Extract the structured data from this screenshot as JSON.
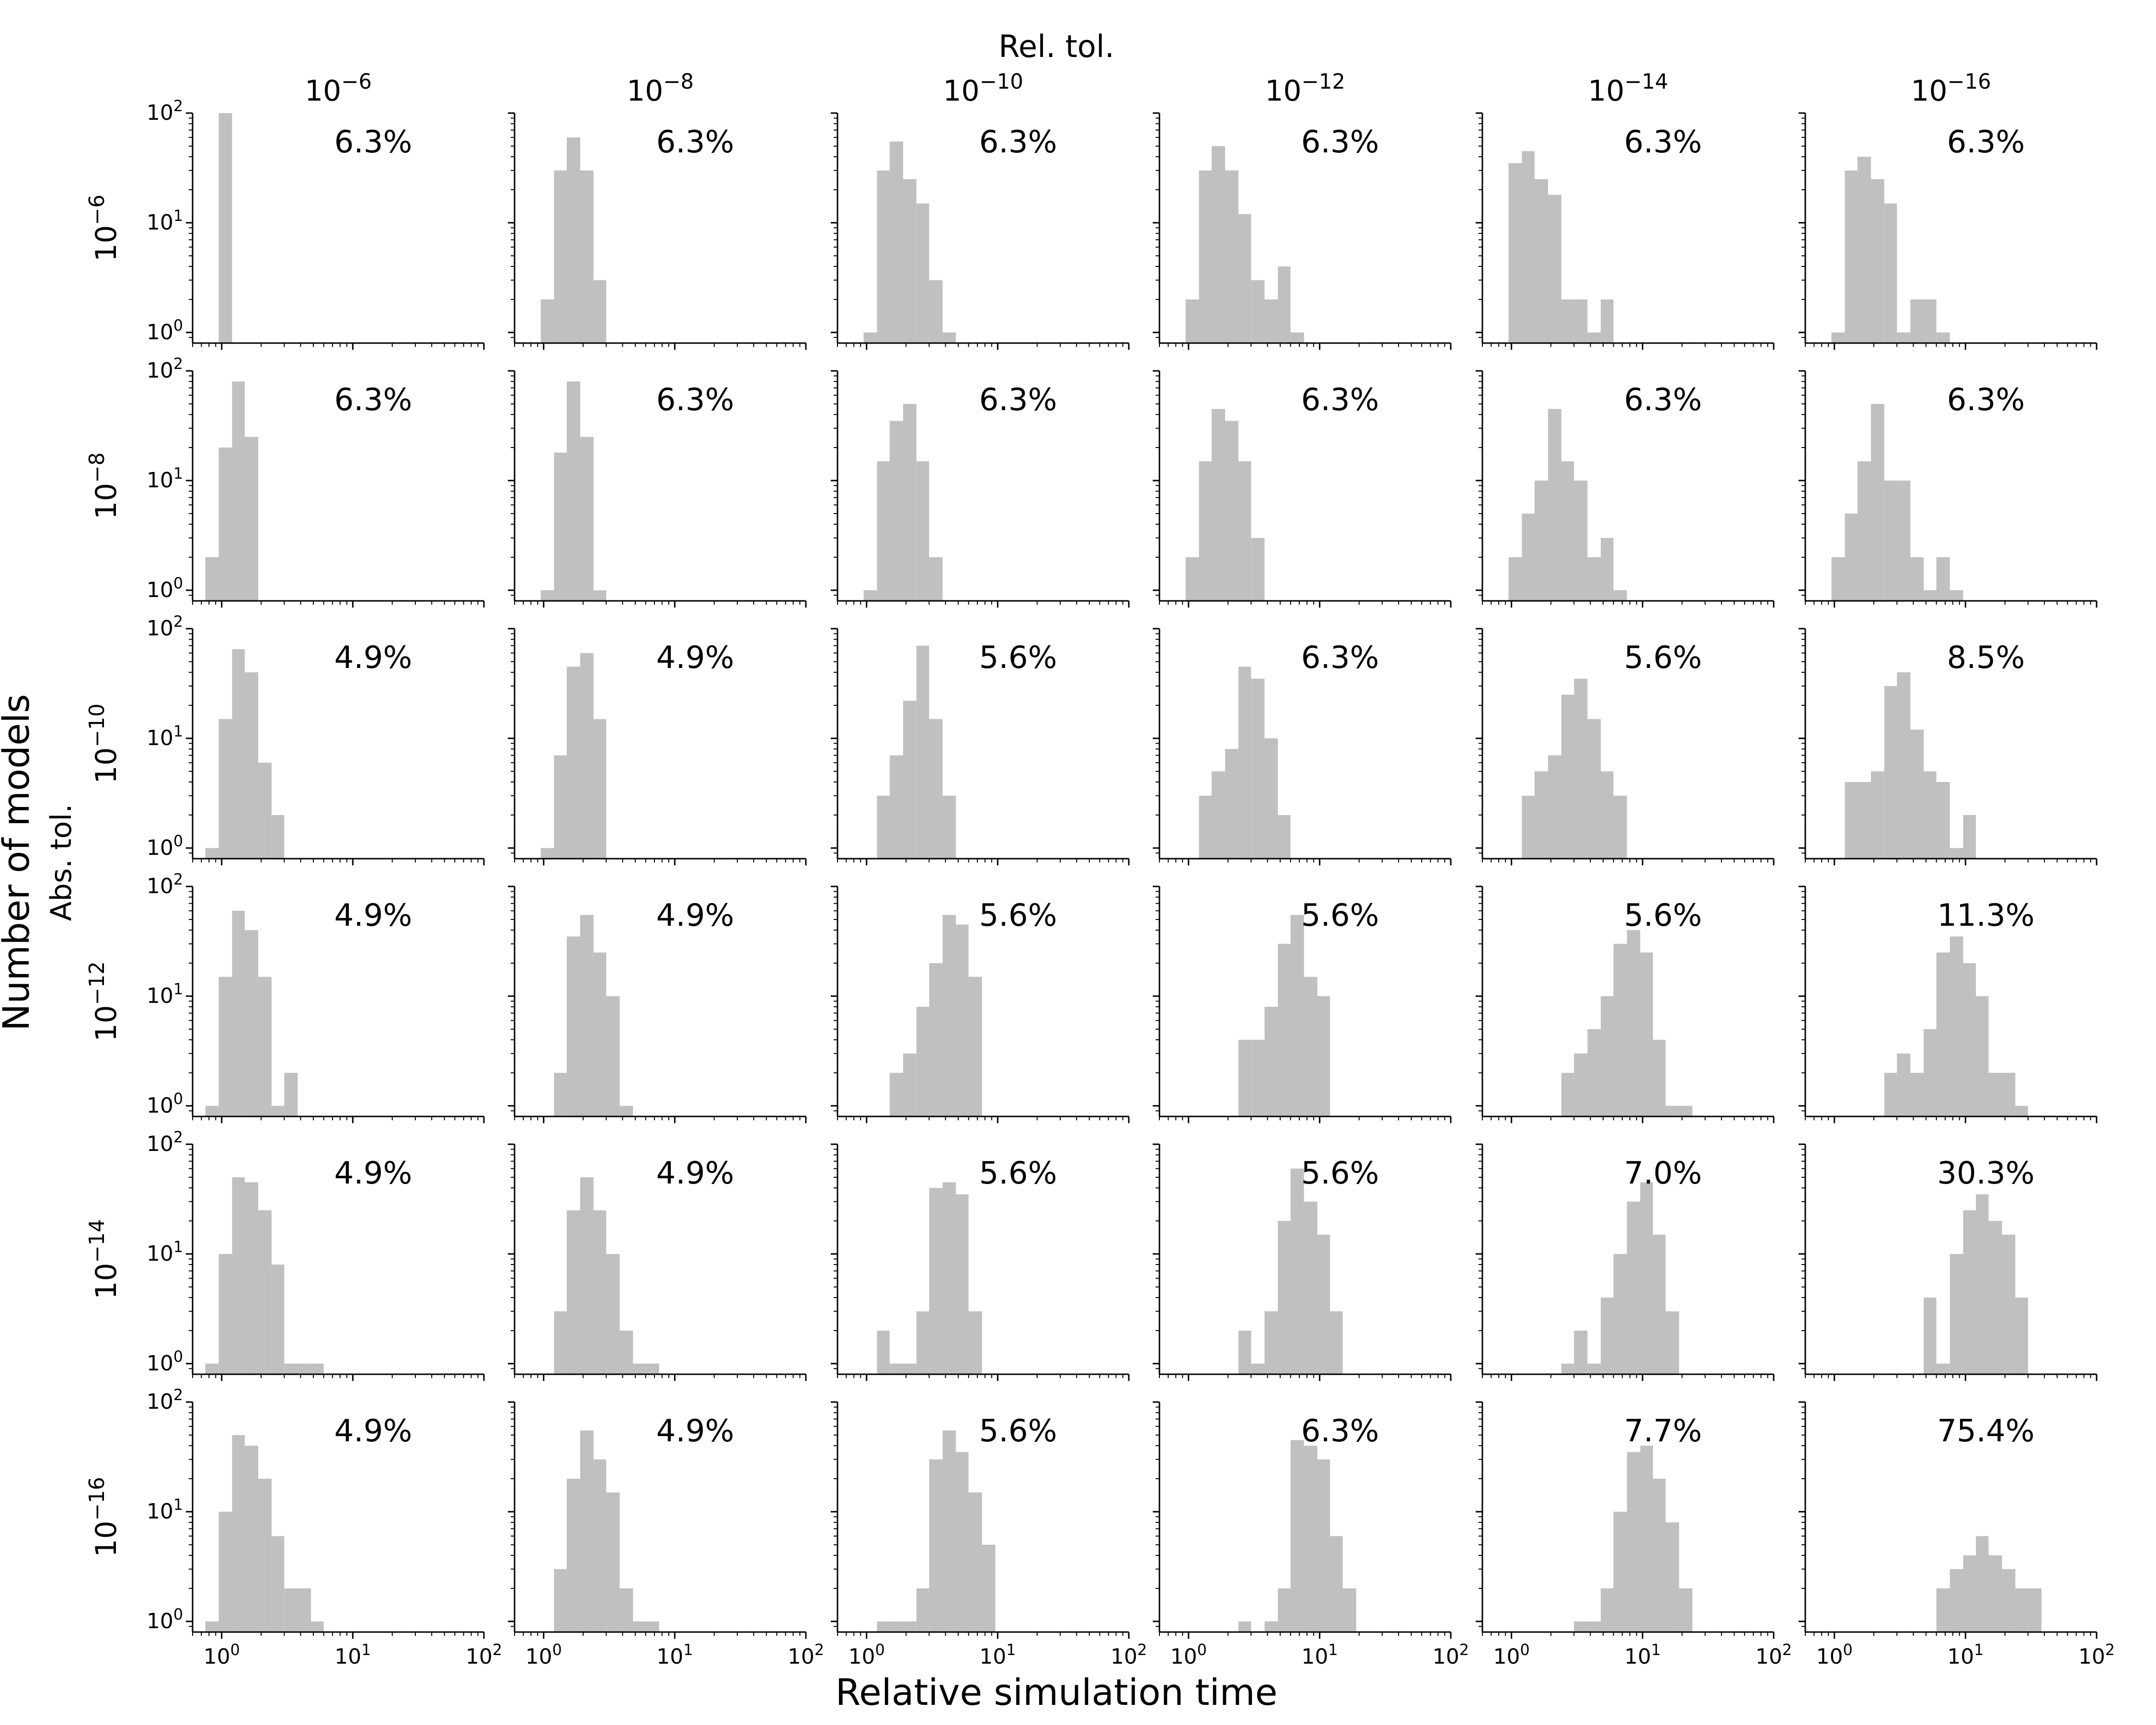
{
  "figure": {
    "column_group_title": "Rel. tol.",
    "row_group_title": "Abs. tol.",
    "xlabel": "Relative simulation time",
    "ylabel": "Number of models"
  },
  "colors": {
    "bar": "#c0c0c0",
    "axis": "#000000",
    "background": "#ffffff"
  },
  "chart_data": {
    "type": "bar",
    "subtype": "histogram-grid",
    "rows": 6,
    "cols": 6,
    "xscale": "log",
    "yscale": "log",
    "xlim": [
      0.6,
      100
    ],
    "ylim": [
      0.8,
      100
    ],
    "x_ticks": [
      1,
      10,
      100
    ],
    "y_ticks": [
      1,
      10,
      100
    ],
    "grid": false,
    "bin_edges": [
      0.75,
      0.95,
      1.2,
      1.5,
      1.9,
      2.4,
      3.0,
      3.8,
      4.8,
      6.0,
      7.6,
      9.6,
      12,
      15,
      19,
      24,
      30,
      38
    ],
    "col_values": [
      "-6",
      "-8",
      "-10",
      "-12",
      "-14",
      "-16"
    ],
    "row_values": [
      "-6",
      "-8",
      "-10",
      "-12",
      "-14",
      "-16"
    ],
    "panels": [
      [
        {
          "abs_tol": "-6",
          "rel_tol": "-6",
          "label": "6.3%",
          "counts": [
            0,
            100,
            0,
            0,
            0,
            0,
            0,
            0,
            0,
            0,
            0,
            0,
            0,
            0,
            0,
            0,
            0
          ]
        },
        {
          "abs_tol": "-6",
          "rel_tol": "-8",
          "label": "6.3%",
          "counts": [
            0,
            2,
            30,
            60,
            30,
            3,
            0,
            0,
            0,
            0,
            0,
            0,
            0,
            0,
            0,
            0,
            0
          ]
        },
        {
          "abs_tol": "-6",
          "rel_tol": "-10",
          "label": "6.3%",
          "counts": [
            0,
            1,
            30,
            55,
            25,
            15,
            3,
            1,
            0,
            0,
            0,
            0,
            0,
            0,
            0,
            0,
            0
          ]
        },
        {
          "abs_tol": "-6",
          "rel_tol": "-12",
          "label": "6.3%",
          "counts": [
            0,
            2,
            30,
            50,
            30,
            12,
            3,
            2,
            4,
            1,
            0,
            0,
            0,
            0,
            0,
            0,
            0
          ]
        },
        {
          "abs_tol": "-6",
          "rel_tol": "-14",
          "label": "6.3%",
          "counts": [
            0,
            35,
            45,
            25,
            18,
            2,
            2,
            1,
            2,
            0,
            0,
            0,
            0,
            0,
            0,
            0,
            0
          ]
        },
        {
          "abs_tol": "-6",
          "rel_tol": "-16",
          "label": "6.3%",
          "counts": [
            0,
            1,
            30,
            40,
            25,
            15,
            1,
            2,
            2,
            1,
            0,
            0,
            0,
            0,
            0,
            0,
            0
          ]
        }
      ],
      [
        {
          "abs_tol": "-8",
          "rel_tol": "-6",
          "label": "6.3%",
          "counts": [
            2,
            20,
            80,
            25,
            0,
            0,
            0,
            0,
            0,
            0,
            0,
            0,
            0,
            0,
            0,
            0,
            0
          ]
        },
        {
          "abs_tol": "-8",
          "rel_tol": "-8",
          "label": "6.3%",
          "counts": [
            0,
            1,
            18,
            80,
            25,
            1,
            0,
            0,
            0,
            0,
            0,
            0,
            0,
            0,
            0,
            0,
            0
          ]
        },
        {
          "abs_tol": "-8",
          "rel_tol": "-10",
          "label": "6.3%",
          "counts": [
            0,
            1,
            15,
            35,
            50,
            15,
            2,
            0,
            0,
            0,
            0,
            0,
            0,
            0,
            0,
            0,
            0
          ]
        },
        {
          "abs_tol": "-8",
          "rel_tol": "-12",
          "label": "6.3%",
          "counts": [
            0,
            2,
            15,
            45,
            35,
            15,
            3,
            0,
            0,
            0,
            0,
            0,
            0,
            0,
            0,
            0,
            0
          ]
        },
        {
          "abs_tol": "-8",
          "rel_tol": "-14",
          "label": "6.3%",
          "counts": [
            0,
            2,
            5,
            10,
            45,
            15,
            10,
            2,
            3,
            1,
            0,
            0,
            0,
            0,
            0,
            0,
            0
          ]
        },
        {
          "abs_tol": "-8",
          "rel_tol": "-16",
          "label": "6.3%",
          "counts": [
            0,
            2,
            5,
            15,
            50,
            10,
            10,
            2,
            1,
            2,
            1,
            0,
            0,
            0,
            0,
            0,
            0
          ]
        }
      ],
      [
        {
          "abs_tol": "-10",
          "rel_tol": "-6",
          "label": "4.9%",
          "counts": [
            1,
            15,
            65,
            40,
            6,
            2,
            0,
            0,
            0,
            0,
            0,
            0,
            0,
            0,
            0,
            0,
            0
          ]
        },
        {
          "abs_tol": "-10",
          "rel_tol": "-8",
          "label": "4.9%",
          "counts": [
            0,
            1,
            7,
            45,
            60,
            15,
            0,
            0,
            0,
            0,
            0,
            0,
            0,
            0,
            0,
            0,
            0
          ]
        },
        {
          "abs_tol": "-10",
          "rel_tol": "-10",
          "label": "5.6%",
          "counts": [
            0,
            0,
            3,
            7,
            22,
            70,
            15,
            3,
            0,
            0,
            0,
            0,
            0,
            0,
            0,
            0,
            0
          ]
        },
        {
          "abs_tol": "-10",
          "rel_tol": "-12",
          "label": "6.3%",
          "counts": [
            0,
            0,
            3,
            5,
            8,
            45,
            35,
            10,
            2,
            0,
            0,
            0,
            0,
            0,
            0,
            0,
            0
          ]
        },
        {
          "abs_tol": "-10",
          "rel_tol": "-14",
          "label": "5.6%",
          "counts": [
            0,
            0,
            3,
            5,
            7,
            25,
            35,
            15,
            5,
            3,
            0,
            0,
            0,
            0,
            0,
            0,
            0
          ]
        },
        {
          "abs_tol": "-10",
          "rel_tol": "-16",
          "label": "8.5%",
          "counts": [
            0,
            0,
            4,
            4,
            5,
            30,
            40,
            12,
            5,
            4,
            1,
            2,
            0,
            0,
            0,
            0,
            0
          ]
        }
      ],
      [
        {
          "abs_tol": "-12",
          "rel_tol": "-6",
          "label": "4.9%",
          "counts": [
            1,
            15,
            60,
            40,
            15,
            1,
            2,
            0,
            0,
            0,
            0,
            0,
            0,
            0,
            0,
            0,
            0
          ]
        },
        {
          "abs_tol": "-12",
          "rel_tol": "-8",
          "label": "4.9%",
          "counts": [
            0,
            0,
            2,
            35,
            55,
            25,
            10,
            1,
            0,
            0,
            0,
            0,
            0,
            0,
            0,
            0,
            0
          ]
        },
        {
          "abs_tol": "-12",
          "rel_tol": "-10",
          "label": "5.6%",
          "counts": [
            0,
            0,
            0,
            2,
            3,
            8,
            20,
            55,
            45,
            15,
            0,
            0,
            0,
            0,
            0,
            0,
            0
          ]
        },
        {
          "abs_tol": "-12",
          "rel_tol": "-12",
          "label": "5.6%",
          "counts": [
            0,
            0,
            0,
            0,
            0,
            4,
            4,
            8,
            30,
            55,
            15,
            10,
            0,
            0,
            0,
            0,
            0
          ]
        },
        {
          "abs_tol": "-12",
          "rel_tol": "-14",
          "label": "5.6%",
          "counts": [
            0,
            0,
            0,
            0,
            0,
            2,
            3,
            5,
            10,
            30,
            40,
            25,
            4,
            1,
            1,
            0,
            0
          ]
        },
        {
          "abs_tol": "-12",
          "rel_tol": "-16",
          "label": "11.3%",
          "counts": [
            0,
            0,
            0,
            0,
            0,
            2,
            3,
            2,
            5,
            25,
            35,
            20,
            10,
            2,
            2,
            1,
            0
          ]
        }
      ],
      [
        {
          "abs_tol": "-14",
          "rel_tol": "-6",
          "label": "4.9%",
          "counts": [
            1,
            10,
            50,
            45,
            25,
            8,
            1,
            1,
            1,
            0,
            0,
            0,
            0,
            0,
            0,
            0,
            0
          ]
        },
        {
          "abs_tol": "-14",
          "rel_tol": "-8",
          "label": "4.9%",
          "counts": [
            0,
            0,
            3,
            25,
            50,
            25,
            10,
            2,
            1,
            1,
            0,
            0,
            0,
            0,
            0,
            0,
            0
          ]
        },
        {
          "abs_tol": "-14",
          "rel_tol": "-10",
          "label": "5.6%",
          "counts": [
            0,
            0,
            2,
            1,
            1,
            3,
            40,
            45,
            35,
            3,
            0,
            0,
            0,
            0,
            0,
            0,
            0
          ]
        },
        {
          "abs_tol": "-14",
          "rel_tol": "-12",
          "label": "5.6%",
          "counts": [
            0,
            0,
            0,
            0,
            0,
            2,
            1,
            3,
            20,
            60,
            30,
            15,
            3,
            0,
            0,
            0,
            0
          ]
        },
        {
          "abs_tol": "-14",
          "rel_tol": "-14",
          "label": "7.0%",
          "counts": [
            0,
            0,
            0,
            0,
            0,
            1,
            2,
            1,
            4,
            10,
            30,
            45,
            15,
            3,
            0,
            0,
            0
          ]
        },
        {
          "abs_tol": "-14",
          "rel_tol": "-16",
          "label": "30.3%",
          "counts": [
            0,
            0,
            0,
            0,
            0,
            0,
            0,
            0,
            4,
            1,
            10,
            25,
            35,
            20,
            15,
            4,
            0
          ]
        }
      ],
      [
        {
          "abs_tol": "-16",
          "rel_tol": "-6",
          "label": "4.9%",
          "counts": [
            1,
            10,
            50,
            40,
            20,
            6,
            2,
            2,
            1,
            0,
            0,
            0,
            0,
            0,
            0,
            0,
            0
          ]
        },
        {
          "abs_tol": "-16",
          "rel_tol": "-8",
          "label": "4.9%",
          "counts": [
            0,
            0,
            3,
            20,
            55,
            30,
            15,
            2,
            1,
            1,
            0,
            0,
            0,
            0,
            0,
            0,
            0
          ]
        },
        {
          "abs_tol": "-16",
          "rel_tol": "-10",
          "label": "5.6%",
          "counts": [
            0,
            0,
            1,
            1,
            1,
            2,
            30,
            55,
            35,
            15,
            5,
            0,
            0,
            0,
            0,
            0,
            0
          ]
        },
        {
          "abs_tol": "-16",
          "rel_tol": "-12",
          "label": "6.3%",
          "counts": [
            0,
            0,
            0,
            0,
            0,
            1,
            0,
            1,
            2,
            45,
            40,
            30,
            6,
            2,
            0,
            0,
            0
          ]
        },
        {
          "abs_tol": "-16",
          "rel_tol": "-14",
          "label": "7.7%",
          "counts": [
            0,
            0,
            0,
            0,
            0,
            0,
            1,
            1,
            2,
            10,
            35,
            40,
            20,
            8,
            2,
            0,
            0
          ]
        },
        {
          "abs_tol": "-16",
          "rel_tol": "-16",
          "label": "75.4%",
          "counts": [
            0,
            0,
            0,
            0,
            0,
            0,
            0,
            0,
            0,
            2,
            3,
            4,
            6,
            4,
            3,
            2,
            2
          ]
        }
      ]
    ]
  }
}
